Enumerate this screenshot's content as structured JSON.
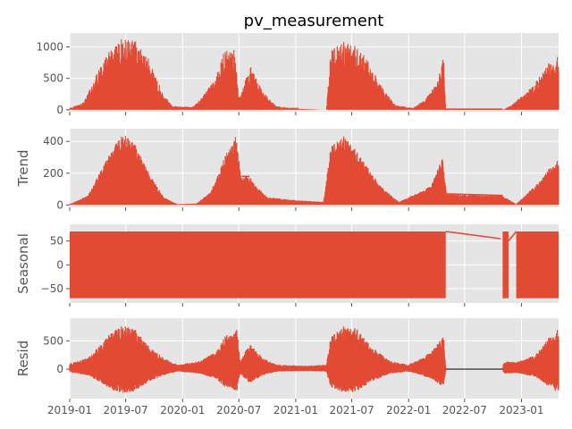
{
  "chart_data": {
    "type": "line",
    "title": "pv_measurement",
    "style": "ggplot",
    "grid": true,
    "colors": {
      "series": "#e24a33",
      "panel_bg": "#e5e5e5",
      "grid": "#ffffff",
      "text": "#555555",
      "zero_line": "#000000"
    },
    "x_ticks": [
      "2019-01",
      "2019-07",
      "2020-01",
      "2020-07",
      "2021-01",
      "2021-07",
      "2022-01",
      "2022-07",
      "2023-01"
    ],
    "xlim": [
      "2019-01-01",
      "2023-05-01"
    ],
    "panels": [
      {
        "name": "observed",
        "ylabel": "",
        "title": "pv_measurement",
        "ylim": [
          -30,
          1220
        ],
        "yticks": [
          "0",
          "500",
          "1000"
        ],
        "ytick_values": [
          0,
          500,
          1000
        ],
        "envelope_peak_kw": [
          [
            "2019-01-01",
            30
          ],
          [
            "2019-02-15",
            120
          ],
          [
            "2019-04-01",
            600
          ],
          [
            "2019-05-15",
            1000
          ],
          [
            "2019-06-20",
            1150
          ],
          [
            "2019-08-01",
            1100
          ],
          [
            "2019-09-15",
            800
          ],
          [
            "2019-10-30",
            250
          ],
          [
            "2019-12-01",
            60
          ],
          [
            "2020-02-01",
            50
          ],
          [
            "2020-03-01",
            180
          ],
          [
            "2020-04-10",
            450
          ],
          [
            "2020-05-10",
            900
          ],
          [
            "2020-06-15",
            1050
          ],
          [
            "2020-07-01",
            200
          ],
          [
            "2020-08-08",
            700
          ],
          [
            "2020-09-15",
            300
          ],
          [
            "2020-10-30",
            60
          ],
          [
            "2021-01-01",
            20
          ],
          [
            "2021-04-10",
            0
          ],
          [
            "2021-04-25",
            1000
          ],
          [
            "2021-06-20",
            1130
          ],
          [
            "2021-08-10",
            900
          ],
          [
            "2021-10-01",
            400
          ],
          [
            "2021-11-20",
            80
          ],
          [
            "2022-01-15",
            30
          ],
          [
            "2022-03-01",
            200
          ],
          [
            "2022-04-05",
            450
          ],
          [
            "2022-04-25",
            900
          ],
          [
            "2022-05-01",
            0
          ],
          [
            "2022-11-01",
            0
          ],
          [
            "2022-12-01",
            80
          ],
          [
            "2023-02-01",
            350
          ],
          [
            "2023-04-15",
            850
          ]
        ]
      },
      {
        "name": "trend",
        "ylabel": "Trend",
        "ylim": [
          -15,
          480
        ],
        "yticks": [
          "0",
          "200",
          "400"
        ],
        "ytick_values": [
          0,
          200,
          400
        ],
        "envelope_peak_kw": [
          [
            "2019-01-01",
            5
          ],
          [
            "2019-03-01",
            60
          ],
          [
            "2019-04-20",
            250
          ],
          [
            "2019-06-01",
            400
          ],
          [
            "2019-06-25",
            450
          ],
          [
            "2019-08-01",
            380
          ],
          [
            "2019-09-15",
            200
          ],
          [
            "2019-11-01",
            50
          ],
          [
            "2019-12-15",
            5
          ],
          [
            "2020-02-15",
            10
          ],
          [
            "2020-04-01",
            80
          ],
          [
            "2020-05-15",
            300
          ],
          [
            "2020-06-20",
            440
          ],
          [
            "2020-07-10",
            180
          ],
          [
            "2020-08-05",
            180
          ],
          [
            "2020-08-20",
            130
          ],
          [
            "2020-10-01",
            50
          ],
          [
            "2021-01-01",
            30
          ],
          [
            "2021-04-01",
            20
          ],
          [
            "2021-04-25",
            380
          ],
          [
            "2021-06-10",
            440
          ],
          [
            "2021-08-01",
            300
          ],
          [
            "2021-10-01",
            120
          ],
          [
            "2021-12-01",
            20
          ],
          [
            "2022-03-15",
            120
          ],
          [
            "2022-04-20",
            300
          ],
          [
            "2022-05-05",
            70
          ],
          [
            "2022-11-01",
            60
          ],
          [
            "2022-12-15",
            5
          ],
          [
            "2023-03-01",
            150
          ],
          [
            "2023-04-20",
            280
          ]
        ]
      },
      {
        "name": "seasonal",
        "ylabel": "Seasonal",
        "ylim": [
          -80,
          85
        ],
        "yticks": [
          "−50",
          "0",
          "50"
        ],
        "ytick_values": [
          -50,
          0,
          50
        ],
        "amplitude_kw": 70,
        "segments": [
          [
            "2019-01-01",
            "2022-05-01"
          ],
          [
            "2022-11-01",
            "2022-11-20"
          ],
          [
            "2022-12-15",
            "2023-05-01"
          ]
        ],
        "bridge_lines": [
          [
            [
              "2022-05-01",
              70
            ],
            [
              "2022-10-25",
              55
            ]
          ],
          [
            [
              "2022-11-20",
              50
            ],
            [
              "2022-12-15",
              70
            ]
          ]
        ]
      },
      {
        "name": "resid",
        "ylabel": "Resid",
        "ylim": [
          -520,
          900
        ],
        "yticks": [
          "0",
          "500"
        ],
        "ytick_values": [
          0,
          500
        ],
        "envelope_kw": [
          [
            "2019-01-01",
            100
          ],
          [
            "2019-03-01",
            200
          ],
          [
            "2019-04-15",
            450
          ],
          [
            "2019-05-20",
            700
          ],
          [
            "2019-06-25",
            780
          ],
          [
            "2019-08-01",
            700
          ],
          [
            "2019-09-15",
            400
          ],
          [
            "2019-11-01",
            200
          ],
          [
            "2019-12-15",
            80
          ],
          [
            "2020-03-01",
            150
          ],
          [
            "2020-04-15",
            300
          ],
          [
            "2020-05-20",
            600
          ],
          [
            "2020-06-25",
            700
          ],
          [
            "2020-07-05",
            150
          ],
          [
            "2020-08-05",
            450
          ],
          [
            "2020-09-15",
            200
          ],
          [
            "2020-11-01",
            80
          ],
          [
            "2021-02-01",
            60
          ],
          [
            "2021-04-10",
            80
          ],
          [
            "2021-04-25",
            600
          ],
          [
            "2021-06-10",
            780
          ],
          [
            "2021-07-20",
            720
          ],
          [
            "2021-09-01",
            400
          ],
          [
            "2021-11-01",
            150
          ],
          [
            "2022-01-01",
            80
          ],
          [
            "2022-03-15",
            300
          ],
          [
            "2022-04-25",
            600
          ],
          [
            "2022-05-01",
            0
          ],
          [
            "2022-11-01",
            0
          ],
          [
            "2022-11-05",
            150
          ],
          [
            "2022-12-15",
            120
          ],
          [
            "2023-02-15",
            250
          ],
          [
            "2023-04-20",
            700
          ]
        ]
      }
    ]
  }
}
